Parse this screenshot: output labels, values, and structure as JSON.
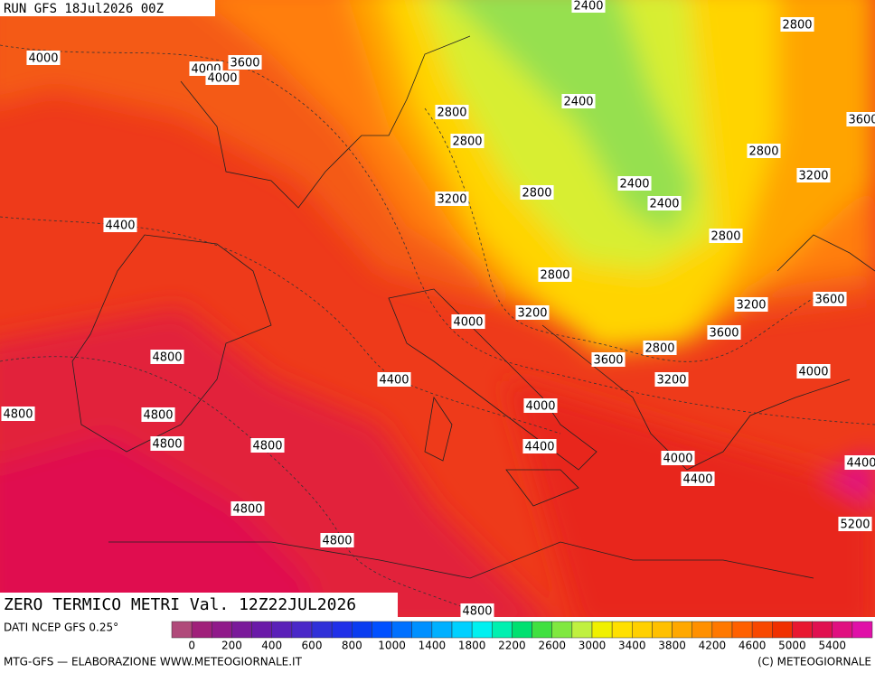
{
  "header": "RUN GFS 18Jul2026 00Z",
  "title": "ZERO TERMICO METRI Val. 12Z22JUL2026",
  "contour_labels": [
    4000,
    4000,
    3600,
    4000,
    2400,
    2800,
    2800,
    2400,
    3600,
    2800,
    2800,
    3200,
    3200,
    2800,
    2400,
    2400,
    4400,
    2800,
    2800,
    3200,
    3600,
    4000,
    3200,
    3600,
    2800,
    4800,
    3600,
    4400,
    3200,
    4000,
    4000,
    4800,
    4800,
    4800,
    4800,
    4400,
    4000,
    4400,
    4400,
    4800,
    5200,
    4800,
    4800
  ],
  "colorbar": {
    "colors": [
      "#b04a7a",
      "#a0207a",
      "#901a8a",
      "#7a1a9a",
      "#6a1aa8",
      "#5a20b8",
      "#4a28c8",
      "#3030d8",
      "#2030e8",
      "#0a3cf0",
      "#0050ff",
      "#0070ff",
      "#0090ff",
      "#00b0ff",
      "#00d0ff",
      "#00f0f0",
      "#00f0b0",
      "#00e070",
      "#40e040",
      "#80e840",
      "#c0f040",
      "#f0f000",
      "#ffe000",
      "#ffd000",
      "#ffc000",
      "#ffa800",
      "#ff9000",
      "#ff7800",
      "#ff6000",
      "#f84800",
      "#f03000",
      "#e81830",
      "#e01050",
      "#e01080",
      "#e010a8"
    ],
    "ticks": [
      0,
      200,
      400,
      600,
      800,
      1000,
      1400,
      1800,
      2200,
      2600,
      3000,
      3400,
      3800,
      4200,
      4600,
      5000,
      5400
    ]
  },
  "footer": {
    "source": "DATI NCEP GFS 0.25°",
    "credit": "MTG-GFS — ELABORAZIONE WWW.METEOGIORNALE.IT",
    "copyright": "(C) METEOGIORNALE"
  }
}
